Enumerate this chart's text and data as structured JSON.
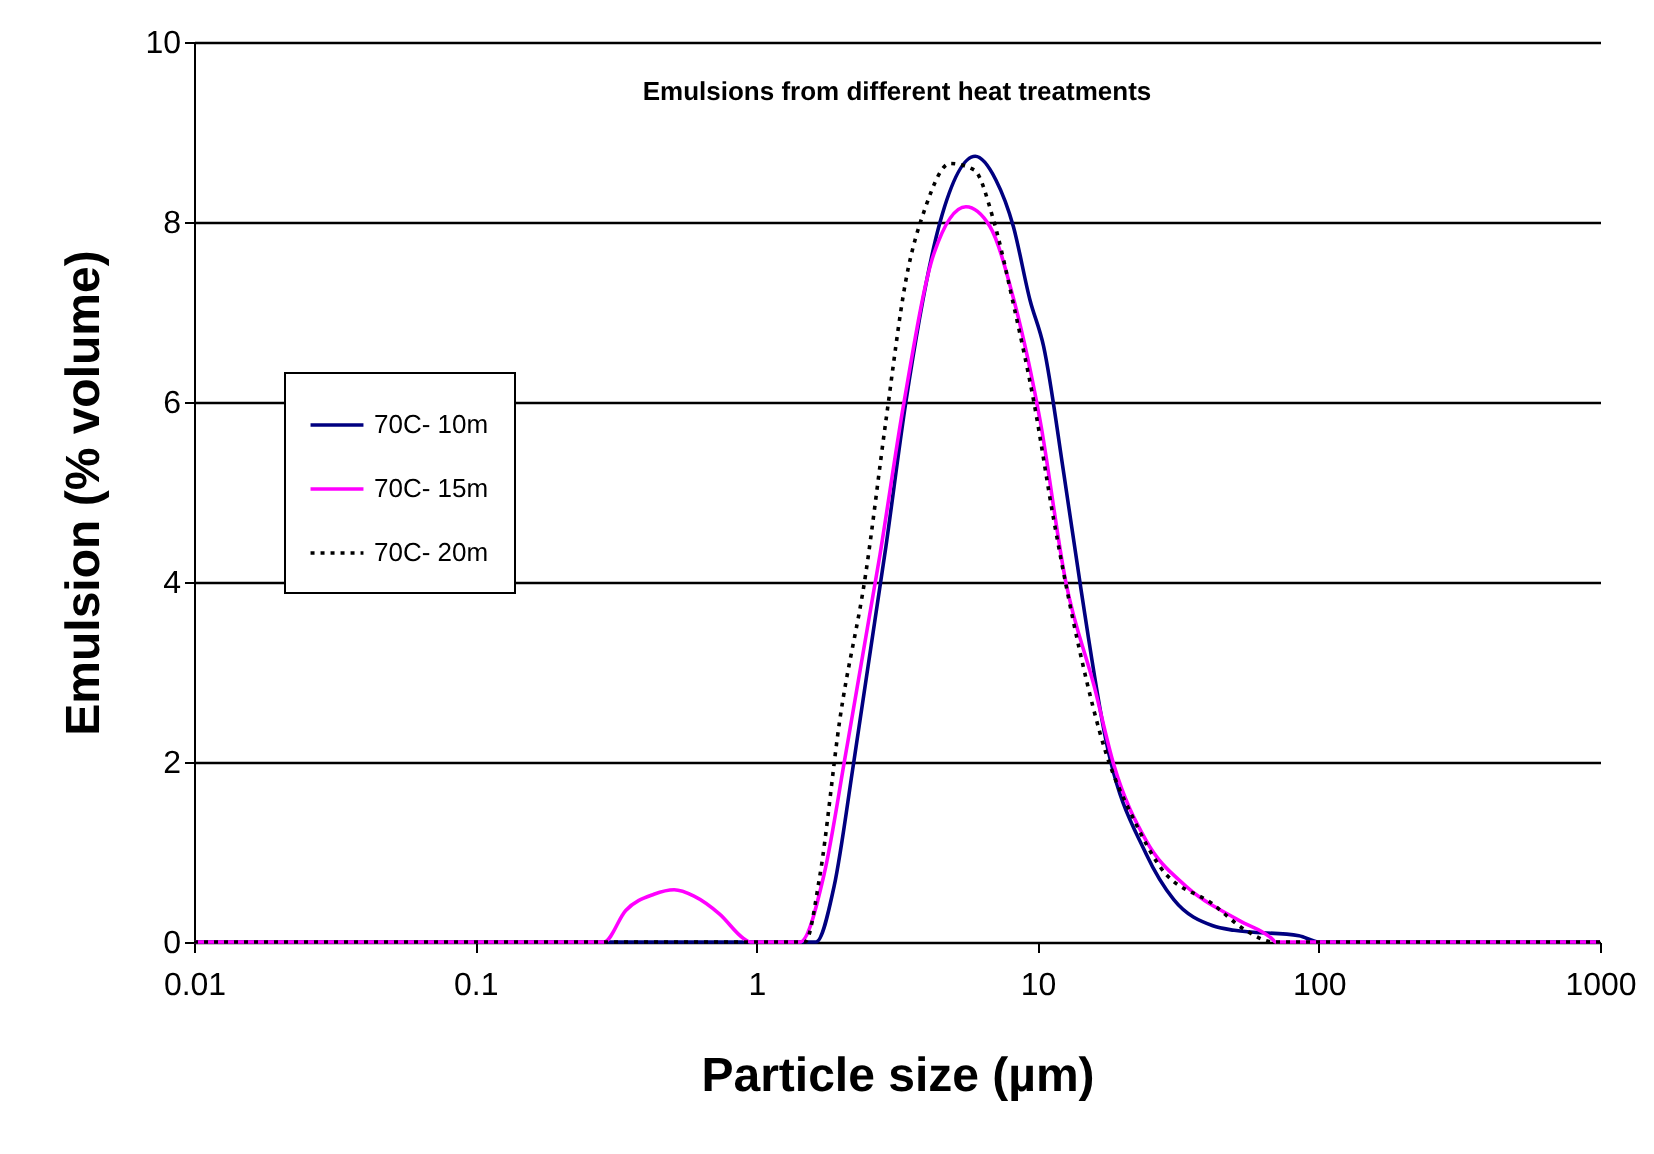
{
  "chart_data": {
    "type": "line",
    "title": "Emulsions from different heat treatments",
    "xlabel": "Particle size (µm)",
    "ylabel": "Emulsion (% volume)",
    "log": "x",
    "xlim": [
      0.01,
      1000
    ],
    "xticks": [
      0.01,
      0.1,
      1,
      10,
      100,
      1000
    ],
    "ylim": [
      0,
      10
    ],
    "yticks": [
      0,
      2,
      4,
      6,
      8,
      10
    ],
    "grid": "y",
    "legend": "left",
    "marker": "none",
    "series": [
      {
        "name": "70C- 10m",
        "color": "#000080",
        "line_style": "solid",
        "x": [
          0.01,
          1.63,
          1.89,
          2.22,
          2.89,
          3.4,
          4.5,
          6.0,
          7.1,
          8.2,
          9.4,
          10.5,
          12.4,
          14.2,
          17.5,
          24.3,
          30.5,
          42,
          50,
          85,
          100,
          1000
        ],
        "values": [
          0,
          0,
          0.62,
          2.0,
          4.4,
          6.0,
          8.0,
          8.73,
          8.47,
          7.95,
          7.13,
          6.62,
          5.2,
          3.96,
          2.24,
          0.98,
          0.47,
          0.18,
          0.13,
          0.07,
          0,
          0
        ]
      },
      {
        "name": "70C- 15m",
        "color": "#ff00ff",
        "line_style": "solid",
        "x": [
          0.01,
          0.287,
          0.343,
          0.432,
          0.51,
          0.6,
          0.74,
          0.9,
          0.95,
          1.43,
          1.74,
          2.08,
          2.75,
          3.35,
          4.28,
          5.56,
          6.77,
          8.24,
          10.2,
          12.6,
          15.9,
          18.7,
          24.3,
          33.7,
          52,
          69,
          70,
          1000
        ],
        "values": [
          0,
          0,
          0.35,
          0.53,
          0.58,
          0.51,
          0.31,
          0.04,
          0,
          0,
          0.75,
          2.1,
          4.3,
          6.0,
          7.65,
          8.17,
          7.95,
          7.13,
          5.8,
          4.0,
          2.84,
          1.96,
          1.13,
          0.62,
          0.24,
          0.02,
          0,
          0
        ]
      },
      {
        "name": "70C- 20m",
        "color": "#000000",
        "line_style": "dotted",
        "x": [
          0.01,
          1.49,
          1.68,
          1.98,
          2.45,
          2.89,
          3.4,
          4.0,
          4.88,
          5.94,
          7.0,
          8.24,
          9.7,
          11.4,
          14.2,
          17.5,
          22,
          27.2,
          42,
          55,
          69,
          1000
        ],
        "values": [
          0,
          0,
          0.73,
          2.47,
          4.1,
          5.8,
          7.35,
          8.17,
          8.65,
          8.58,
          8.0,
          7.06,
          6.0,
          4.7,
          3.2,
          2.1,
          1.36,
          0.84,
          0.42,
          0.13,
          0,
          0
        ]
      }
    ]
  }
}
